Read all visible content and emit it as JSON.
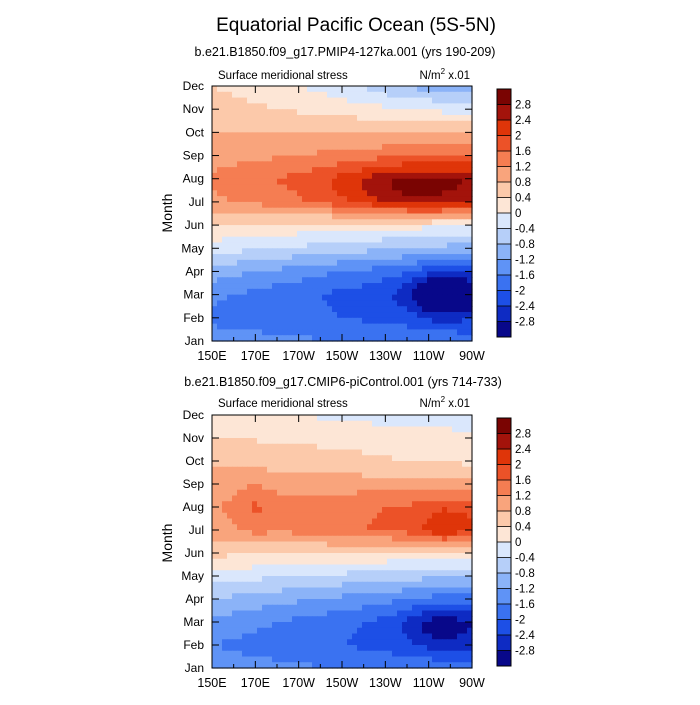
{
  "title": "Equatorial Pacific Ocean (5S-5N)",
  "chart_data": [
    {
      "type": "heatmap",
      "subtitle": "b.e21.B1850.f09_g17.PMIP4-127ka.001 (yrs 190-209)",
      "left_label": "Surface meridional stress",
      "units_prefix": "N/m",
      "units_sup": "2",
      "units_suffix": " x.01",
      "ylabel": "Month",
      "months": [
        "Jan",
        "Feb",
        "Mar",
        "Apr",
        "May",
        "Jun",
        "Jul",
        "Aug",
        "Sep",
        "Oct",
        "Nov",
        "Dec"
      ],
      "lon_ticks": [
        "150E",
        "170E",
        "170W",
        "150W",
        "130W",
        "110W",
        "90W"
      ],
      "lon_range": [
        150,
        270
      ],
      "field": {
        "base": [
          -1.4,
          -1.7,
          -1.5,
          -1.0,
          -0.2,
          0.4,
          1.1,
          1.3,
          1.0,
          0.8,
          0.6,
          0.4
        ],
        "east_gain": [
          -0.2,
          -0.3,
          -0.6,
          -0.6,
          -0.4,
          -0.2,
          0.6,
          0.6,
          0.3,
          0.0,
          -0.4,
          -0.6
        ],
        "features": [
          {
            "lon": 257,
            "month": 3.0,
            "amp": -1.3,
            "slon": 14,
            "smonth": 0.9
          },
          {
            "lon": 240,
            "month": 7.6,
            "amp": 0.8,
            "slon": 30,
            "smonth": 1.0
          },
          {
            "lon": 248,
            "month": 12.0,
            "amp": -0.35,
            "slon": 28,
            "smonth": 0.6
          }
        ]
      }
    },
    {
      "type": "heatmap",
      "subtitle": "b.e21.B1850.f09_g17.CMIP6-piControl.001 (yrs 714-733)",
      "left_label": "Surface meridional stress",
      "units_prefix": "N/m",
      "units_sup": "2",
      "units_suffix": " x.01",
      "ylabel": "Month",
      "months": [
        "Jan",
        "Feb",
        "Mar",
        "Apr",
        "May",
        "Jun",
        "Jul",
        "Aug",
        "Sep",
        "Oct",
        "Nov",
        "Dec"
      ],
      "lon_ticks": [
        "150E",
        "170E",
        "170W",
        "150W",
        "130W",
        "110W",
        "90W"
      ],
      "lon_range": [
        150,
        270
      ],
      "field": {
        "base": [
          -1.4,
          -1.6,
          -1.3,
          -0.8,
          -0.2,
          0.5,
          1.0,
          1.2,
          1.0,
          0.7,
          0.4,
          0.2
        ],
        "east_gain": [
          -0.2,
          -0.4,
          -0.6,
          -0.5,
          -0.3,
          -0.1,
          0.5,
          0.3,
          0.0,
          -0.2,
          -0.1,
          -0.3
        ],
        "features": [
          {
            "lon": 255,
            "month": 2.8,
            "amp": -0.7,
            "slon": 16,
            "smonth": 0.9
          },
          {
            "lon": 257,
            "month": 7.2,
            "amp": 0.5,
            "slon": 10,
            "smonth": 0.8
          },
          {
            "lon": 170,
            "month": 8.0,
            "amp": 0.35,
            "slon": 8,
            "smonth": 1.2
          }
        ]
      }
    }
  ],
  "colorbar": {
    "labels": [
      "2.8",
      "2.4",
      "2",
      "1.6",
      "1.2",
      "0.8",
      "0.4",
      "0",
      "-0.4",
      "-0.8",
      "-1.2",
      "-1.6",
      "-2",
      "-2.4",
      "-2.8"
    ],
    "levels": [
      -2.8,
      -2.4,
      -2.0,
      -1.6,
      -1.2,
      -0.8,
      -0.4,
      0,
      0.4,
      0.8,
      1.2,
      1.6,
      2.0,
      2.4,
      2.8
    ],
    "colors_low_to_high": [
      "#08088a",
      "#0e2bc3",
      "#1d4fe6",
      "#3a72f1",
      "#5f93f6",
      "#8bb3f8",
      "#b6cff9",
      "#dae7fc",
      "#fde6d6",
      "#fcc9aa",
      "#f9a47c",
      "#f57d52",
      "#ec5228",
      "#df3509",
      "#a3130b",
      "#7a0402"
    ]
  }
}
